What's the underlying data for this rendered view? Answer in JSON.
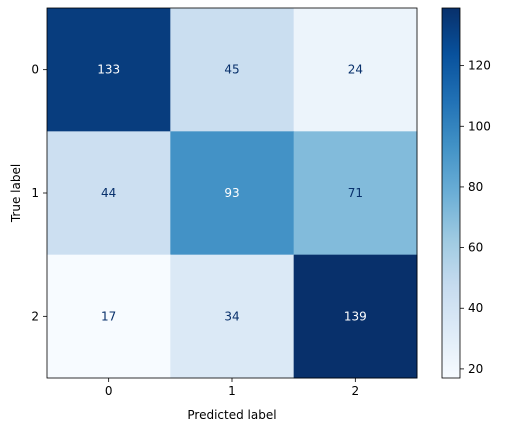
{
  "chart_data": {
    "type": "heatmap",
    "title": "",
    "xlabel": "Predicted label",
    "ylabel": "True label",
    "x_categories": [
      "0",
      "1",
      "2"
    ],
    "y_categories": [
      "0",
      "1",
      "2"
    ],
    "values": [
      [
        133,
        45,
        24
      ],
      [
        44,
        93,
        71
      ],
      [
        17,
        34,
        139
      ]
    ],
    "colormap": "Blues",
    "color_range": [
      17,
      139
    ],
    "colorbar_ticks": [
      20,
      40,
      60,
      80,
      100,
      120
    ],
    "colorbar_tick_labels": [
      "20",
      "40",
      "60",
      "80",
      "100",
      "120"
    ],
    "text_color_light": "#ffffff",
    "text_color_dark": "#08306b",
    "grid": false
  }
}
